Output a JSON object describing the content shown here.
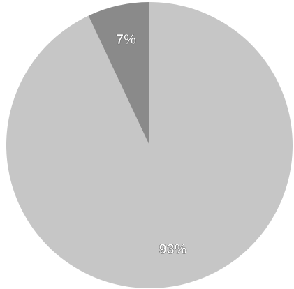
{
  "chart_data": {
    "type": "pie",
    "values": [
      93,
      7
    ],
    "value_labels": [
      "93%",
      "7%"
    ],
    "colors": [
      "#c6c6c6",
      "#8a8a8a"
    ],
    "start_angle": 0,
    "direction": "clockwise"
  }
}
